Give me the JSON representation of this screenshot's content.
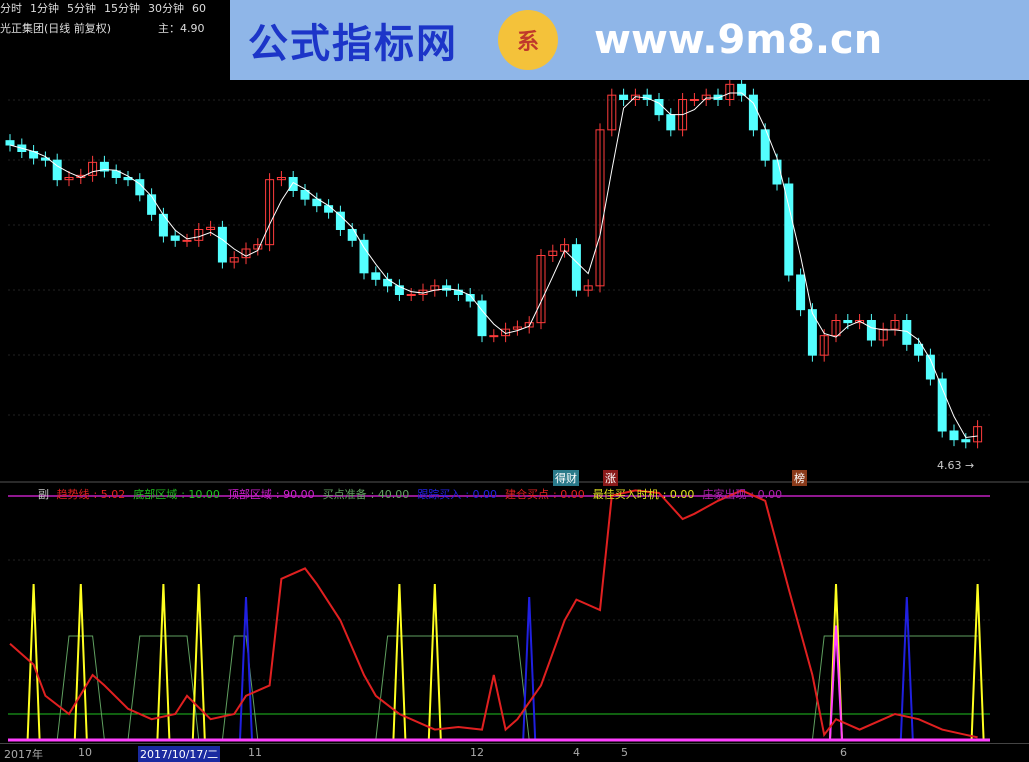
{
  "periods": [
    "分时",
    "1分钟",
    "5分钟",
    "15分钟",
    "30分钟",
    "60"
  ],
  "title": "光正集团(日线 前复权)",
  "main_label": "主：4.90",
  "banner": {
    "name": "公式指标网",
    "logo": "系",
    "url": "www.9m8.cn"
  },
  "low_label": "4.63",
  "markers": [
    {
      "text": "得财",
      "color": "#2a7a8a"
    },
    {
      "text": "涨",
      "color": "#8a1a1a"
    },
    {
      "text": "榜",
      "color": "#8a3a1a"
    }
  ],
  "legend": {
    "sub": "副",
    "items": [
      {
        "label": "趋势线",
        "value": "5.02",
        "color": "#e02020"
      },
      {
        "label": "底部区域",
        "value": "10.00",
        "color": "#20c020"
      },
      {
        "label": "顶部区域",
        "value": "90.00",
        "color": "#d020d0"
      },
      {
        "label": "买点准备",
        "value": "40.00",
        "color": "#60a060"
      },
      {
        "label": "跟踪买入",
        "value": "0.00",
        "color": "#2020e0"
      },
      {
        "label": "建仓买点",
        "value": "0.00",
        "color": "#e02020"
      },
      {
        "label": "最佳买入时机",
        "value": "0.00",
        "color": "#e0e020"
      },
      {
        "label": "庄家出现",
        "value": "0.00",
        "color": "#b020b0"
      }
    ]
  },
  "axis_labels": [
    "2017年",
    "10",
    "2017/10/17/二",
    "11",
    "12",
    "4",
    "5",
    "6"
  ],
  "colors": {
    "up": "#ff3c3c",
    "down": "#54ffff",
    "ma": "#ffffff",
    "trend": "#e02020",
    "best": "#ffff20",
    "track": "#2020e0",
    "zhuang": "#ff40ff",
    "prep": "#60a060",
    "bottom": "#20c020",
    "top": "#c020c0"
  },
  "chart_data": {
    "type": "candlestick",
    "closes": [
      6.0,
      5.97,
      5.94,
      5.93,
      5.84,
      5.85,
      5.86,
      5.92,
      5.88,
      5.85,
      5.84,
      5.77,
      5.68,
      5.58,
      5.56,
      5.56,
      5.61,
      5.62,
      5.46,
      5.48,
      5.52,
      5.54,
      5.84,
      5.85,
      5.79,
      5.75,
      5.72,
      5.69,
      5.61,
      5.56,
      5.41,
      5.38,
      5.35,
      5.31,
      5.31,
      5.33,
      5.35,
      5.33,
      5.31,
      5.28,
      5.12,
      5.12,
      5.15,
      5.16,
      5.18,
      5.49,
      5.51,
      5.54,
      5.33,
      5.35,
      6.07,
      6.23,
      6.21,
      6.23,
      6.21,
      6.14,
      6.07,
      6.21,
      6.21,
      6.23,
      6.21,
      6.28,
      6.23,
      6.07,
      5.93,
      5.82,
      5.4,
      5.24,
      5.03,
      5.12,
      5.19,
      5.18,
      5.19,
      5.1,
      5.15,
      5.19,
      5.08,
      5.03,
      4.92,
      4.68,
      4.64,
      4.63,
      4.7
    ],
    "indicator": {
      "trend": [
        [
          0,
          37
        ],
        [
          2,
          29
        ],
        [
          3,
          17
        ],
        [
          5,
          10
        ],
        [
          7,
          25
        ],
        [
          8,
          21
        ],
        [
          10,
          12
        ],
        [
          12,
          8
        ],
        [
          14,
          10
        ],
        [
          15,
          17
        ],
        [
          17,
          8
        ],
        [
          19,
          10
        ],
        [
          20,
          17
        ],
        [
          22,
          21
        ],
        [
          23,
          62
        ],
        [
          25,
          66
        ],
        [
          26,
          60
        ],
        [
          28,
          46
        ],
        [
          30,
          25
        ],
        [
          31,
          17
        ],
        [
          33,
          10
        ],
        [
          35,
          6
        ],
        [
          36,
          4
        ],
        [
          38,
          5
        ],
        [
          40,
          4
        ],
        [
          41,
          25
        ],
        [
          42,
          4
        ],
        [
          43,
          8
        ],
        [
          45,
          21
        ],
        [
          47,
          46
        ],
        [
          48,
          54
        ],
        [
          50,
          50
        ],
        [
          51,
          94
        ],
        [
          53,
          96
        ],
        [
          55,
          95
        ],
        [
          57,
          85
        ],
        [
          58,
          87
        ],
        [
          60,
          92
        ],
        [
          62,
          96
        ],
        [
          64,
          92
        ],
        [
          66,
          58
        ],
        [
          68,
          25
        ],
        [
          69,
          2
        ],
        [
          70,
          8
        ],
        [
          72,
          4
        ],
        [
          74,
          8
        ],
        [
          75,
          10
        ],
        [
          77,
          8
        ],
        [
          79,
          4
        ],
        [
          81,
          2
        ],
        [
          82,
          1
        ]
      ],
      "best_buy_bars": [
        2,
        6,
        13,
        16,
        33,
        36,
        70,
        82
      ],
      "track_buy_bars": [
        20,
        44,
        76
      ],
      "zhuang_bars": [
        70
      ],
      "prep_high_ranges": [
        [
          5,
          7
        ],
        [
          11,
          15
        ],
        [
          19,
          20
        ],
        [
          32,
          43
        ],
        [
          69,
          82
        ]
      ],
      "bottom": 10,
      "top": 90,
      "prep_level": 40,
      "ylim": [
        0,
        100
      ]
    }
  }
}
